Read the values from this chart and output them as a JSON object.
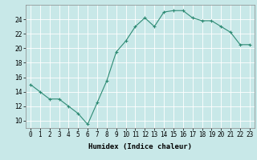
{
  "x": [
    0,
    1,
    2,
    3,
    4,
    5,
    6,
    7,
    8,
    9,
    10,
    11,
    12,
    13,
    14,
    15,
    16,
    17,
    18,
    19,
    20,
    21,
    22,
    23
  ],
  "y": [
    15,
    14,
    13,
    13,
    12,
    11,
    9.5,
    12.5,
    15.5,
    19.5,
    21,
    23,
    24.2,
    23,
    25,
    25.2,
    25.2,
    24.2,
    23.8,
    23.8,
    23,
    22.2,
    20.5,
    20.5
  ],
  "line_color": "#2e8b74",
  "marker": "+",
  "marker_size": 3,
  "bg_color": "#c8e8e8",
  "grid_color": "#ffffff",
  "xlabel": "Humidex (Indice chaleur)",
  "ylim": [
    9,
    26
  ],
  "xlim": [
    -0.5,
    23.5
  ],
  "yticks": [
    10,
    12,
    14,
    16,
    18,
    20,
    22,
    24
  ],
  "xtick_labels": [
    "0",
    "1",
    "2",
    "3",
    "4",
    "5",
    "6",
    "7",
    "8",
    "9",
    "10",
    "11",
    "12",
    "13",
    "14",
    "15",
    "16",
    "17",
    "18",
    "19",
    "20",
    "21",
    "22",
    "23"
  ],
  "xlabel_fontsize": 6.5,
  "tick_fontsize": 5.5
}
